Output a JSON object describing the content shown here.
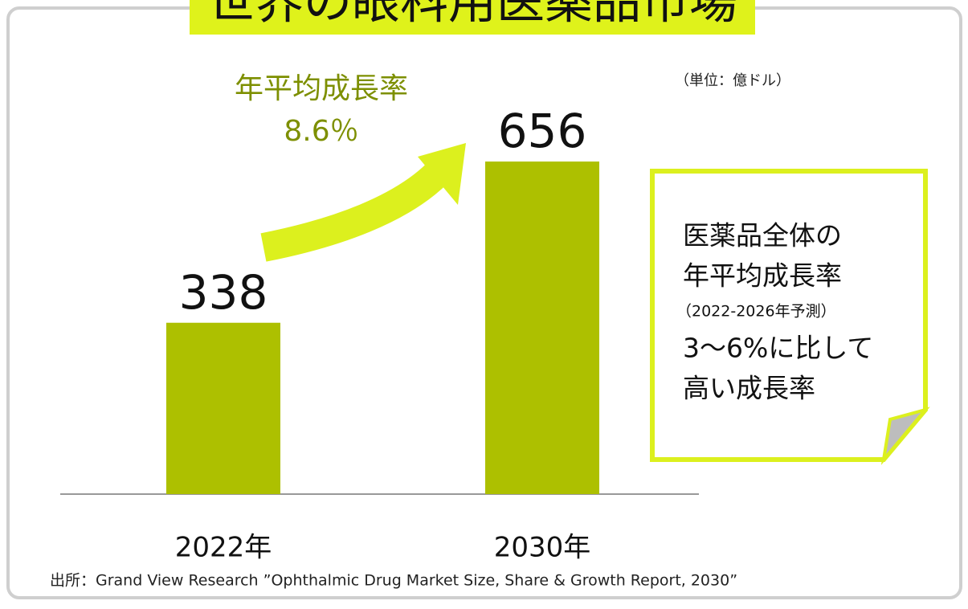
{
  "chart_data": {
    "type": "bar",
    "title": "世界の眼科用医薬品市場",
    "unit_note": "（単位：億ドル）",
    "categories": [
      "2022年",
      "2030年"
    ],
    "values": [
      338,
      656
    ],
    "value_labels": [
      "338",
      "656"
    ],
    "color": "#adc000",
    "growth_annotation": {
      "label": "年平均成長率",
      "rate": "8.6％"
    },
    "callout": [
      "医薬品全体の",
      "年平均成長率",
      "（2022-2026年予測）",
      "3〜6%に比して",
      "高い成長率"
    ],
    "source": "出所：Grand View Research ”Ophthalmic Drug Market Size, Share & Growth Report, 2030”"
  }
}
